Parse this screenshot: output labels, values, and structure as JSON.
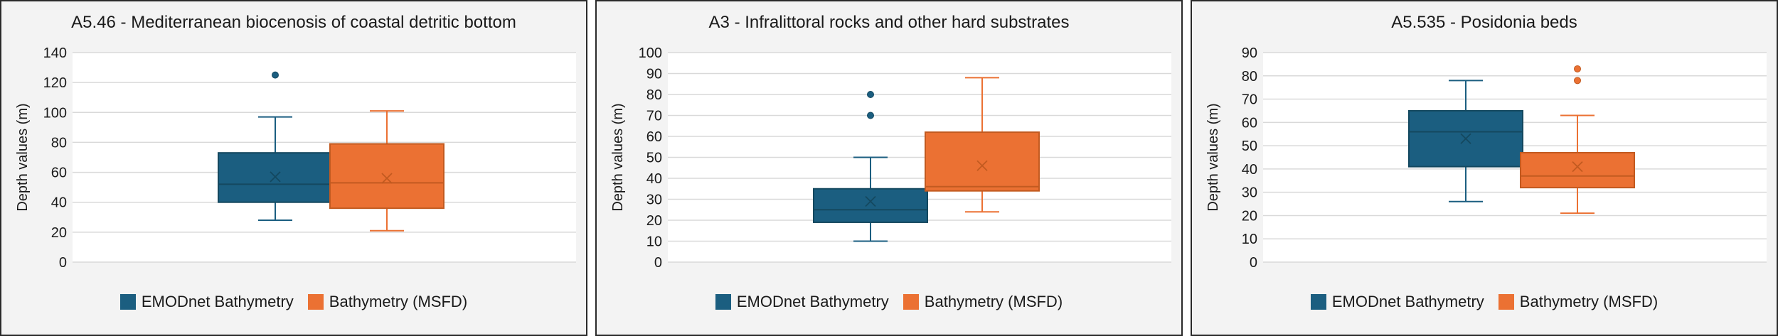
{
  "colors": {
    "series1": "#1b5e80",
    "series1_line": "#14485f",
    "series2": "#eb7133",
    "series2_line": "#c25a20"
  },
  "legend": [
    {
      "name": "EMODnet Bathymetry"
    },
    {
      "name": "Bathymetry (MSFD)"
    }
  ],
  "chart_data": [
    {
      "type": "boxplot",
      "title": "A5.46 - Mediterranean biocenosis of coastal detritic bottom",
      "ylabel": "Depth values (m)",
      "ylim": [
        0,
        140
      ],
      "ytick_step": 20,
      "grid": true,
      "legend_position": "bottom",
      "series": [
        {
          "name": "EMODnet Bathymetry",
          "whisker_low": 28,
          "q1": 40,
          "median": 52,
          "q3": 73,
          "whisker_high": 97,
          "mean": 57,
          "outliers": [
            125
          ]
        },
        {
          "name": "Bathymetry (MSFD)",
          "whisker_low": 21,
          "q1": 36,
          "median": 53,
          "q3": 79,
          "whisker_high": 101,
          "mean": 56,
          "outliers": []
        }
      ]
    },
    {
      "type": "boxplot",
      "title": "A3 - Infralittoral rocks and other hard substrates",
      "ylabel": "Depth values (m)",
      "ylim": [
        0,
        100
      ],
      "ytick_step": 10,
      "grid": true,
      "legend_position": "bottom",
      "series": [
        {
          "name": "EMODnet Bathymetry",
          "whisker_low": 10,
          "q1": 19,
          "median": 25,
          "q3": 35,
          "whisker_high": 50,
          "mean": 29,
          "outliers": [
            70,
            80
          ]
        },
        {
          "name": "Bathymetry (MSFD)",
          "whisker_low": 24,
          "q1": 34,
          "median": 36,
          "q3": 62,
          "whisker_high": 88,
          "mean": 46,
          "outliers": []
        }
      ]
    },
    {
      "type": "boxplot",
      "title": "A5.535 - Posidonia beds",
      "ylabel": "Depth values (m)",
      "ylim": [
        0,
        90
      ],
      "ytick_step": 10,
      "grid": true,
      "legend_position": "bottom",
      "series": [
        {
          "name": "EMODnet Bathymetry",
          "whisker_low": 26,
          "q1": 41,
          "median": 56,
          "q3": 65,
          "whisker_high": 78,
          "mean": 53,
          "outliers": []
        },
        {
          "name": "Bathymetry (MSFD)",
          "whisker_low": 21,
          "q1": 32,
          "median": 37,
          "q3": 47,
          "whisker_high": 63,
          "mean": 41,
          "outliers": [
            78,
            83
          ]
        }
      ]
    }
  ]
}
